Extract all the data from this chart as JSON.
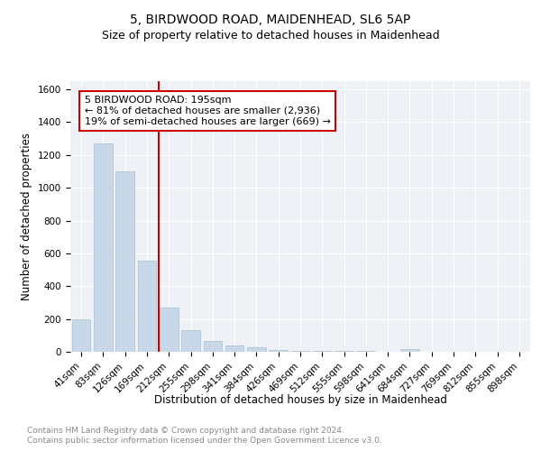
{
  "title": "5, BIRDWOOD ROAD, MAIDENHEAD, SL6 5AP",
  "subtitle": "Size of property relative to detached houses in Maidenhead",
  "xlabel": "Distribution of detached houses by size in Maidenhead",
  "ylabel": "Number of detached properties",
  "footnote1": "Contains HM Land Registry data © Crown copyright and database right 2024.",
  "footnote2": "Contains public sector information licensed under the Open Government Licence v3.0.",
  "categories": [
    "41sqm",
    "83sqm",
    "126sqm",
    "169sqm",
    "212sqm",
    "255sqm",
    "298sqm",
    "341sqm",
    "384sqm",
    "426sqm",
    "469sqm",
    "512sqm",
    "555sqm",
    "598sqm",
    "641sqm",
    "684sqm",
    "727sqm",
    "769sqm",
    "812sqm",
    "855sqm",
    "898sqm"
  ],
  "values": [
    200,
    1270,
    1100,
    555,
    270,
    130,
    65,
    38,
    25,
    12,
    8,
    5,
    4,
    3,
    0,
    18,
    0,
    0,
    0,
    0,
    0
  ],
  "bar_color": "#c8d8e8",
  "bar_edge_color": "#a8bfd0",
  "vline_color": "#cc0000",
  "annotation_line1": "5 BIRDWOOD ROAD: 195sqm",
  "annotation_line2": "← 81% of detached houses are smaller (2,936)",
  "annotation_line3": "19% of semi-detached houses are larger (669) →",
  "annotation_box_color": "#cc0000",
  "ylim": [
    0,
    1650
  ],
  "yticks": [
    0,
    200,
    400,
    600,
    800,
    1000,
    1200,
    1400,
    1600
  ],
  "bg_color": "#eef2f7",
  "grid_color": "#ffffff",
  "title_fontsize": 10,
  "subtitle_fontsize": 9,
  "axis_label_fontsize": 8.5,
  "tick_fontsize": 7.5,
  "footnote_fontsize": 6.5,
  "annotation_fontsize": 8
}
